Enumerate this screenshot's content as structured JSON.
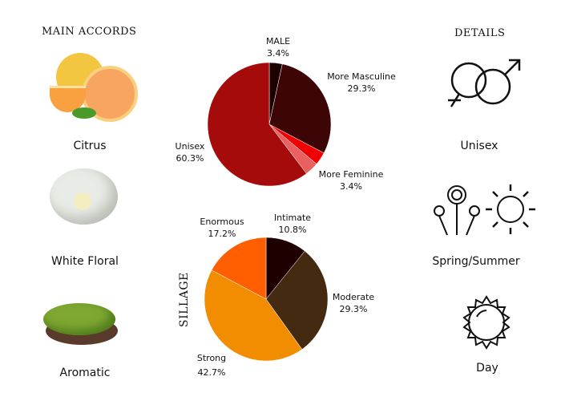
{
  "left": {
    "title": "MAIN ACCORDS",
    "items": [
      {
        "label": "Citrus",
        "icon": "grapefruit-image"
      },
      {
        "label": "White Floral",
        "icon": "white-flower-image"
      },
      {
        "label": "Aromatic",
        "icon": "moss-image"
      }
    ]
  },
  "right": {
    "title": "DETAILS",
    "items": [
      {
        "label": "Unisex",
        "icon": "gender-symbols-icon"
      },
      {
        "label": "Spring/Summer",
        "icon": "flowers-sun-icon"
      },
      {
        "label": "Day",
        "icon": "sun-icon"
      }
    ]
  },
  "chart_data": [
    {
      "type": "pie",
      "slices": [
        {
          "label": "MALE",
          "value": 3.4,
          "text": "3.4%",
          "color": "#1c0000"
        },
        {
          "label": "More Masculine",
          "value": 29.3,
          "text": "29.3%",
          "color": "#3d0505"
        },
        {
          "label": "More Feminine",
          "value": 3.4,
          "text": "3.4%",
          "color": "#f00000"
        },
        {
          "label": "",
          "value": 3.6,
          "text": "",
          "color": "#e86060"
        },
        {
          "label": "Unisex",
          "value": 60.3,
          "text": "60.3%",
          "color": "#a50b0b"
        }
      ]
    },
    {
      "type": "pie",
      "title": "SILLAGE",
      "slices": [
        {
          "label": "Intimate",
          "value": 10.8,
          "text": "10.8%",
          "color": "#1e0000"
        },
        {
          "label": "Moderate",
          "value": 29.3,
          "text": "29.3%",
          "color": "#432a10"
        },
        {
          "label": "Strong",
          "value": 42.7,
          "text": "42.7%",
          "color": "#f28c00"
        },
        {
          "label": "Enormous",
          "value": 17.2,
          "text": "17.2%",
          "color": "#ff5f00"
        }
      ]
    }
  ]
}
